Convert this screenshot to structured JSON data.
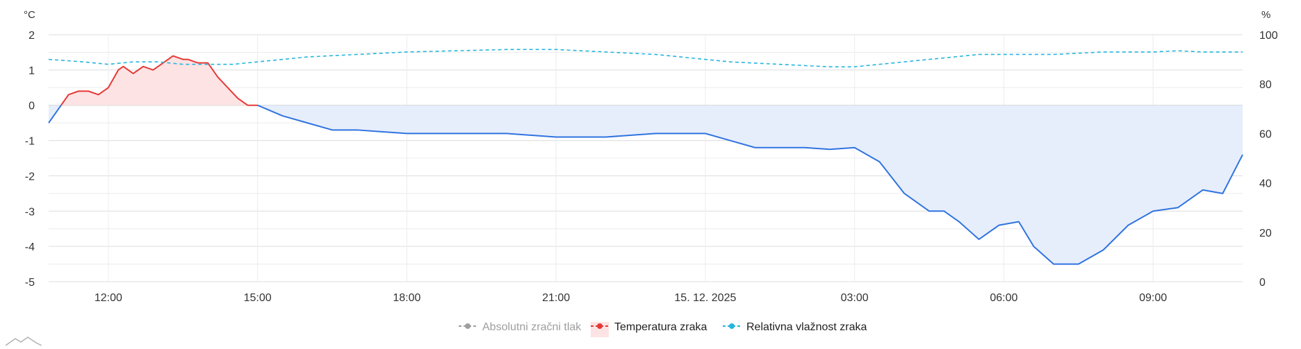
{
  "chart_data": {
    "type": "line",
    "y_left": {
      "unit": "°C",
      "range": [
        -5,
        2
      ],
      "ticks": [
        2,
        1,
        0,
        -1,
        -2,
        -3,
        -4,
        -5
      ]
    },
    "y_right": {
      "unit": "%",
      "range": [
        0,
        100
      ],
      "ticks": [
        100,
        80,
        60,
        40,
        20,
        0
      ]
    },
    "x_ticks": [
      "12:00",
      "15:00",
      "18:00",
      "21:00",
      "15. 12. 2025",
      "03:00",
      "06:00",
      "09:00"
    ],
    "x_tick_hours": [
      12,
      15,
      18,
      21,
      24,
      27,
      30,
      33
    ],
    "x_range_hours": [
      10.8,
      34.8
    ],
    "grid": true,
    "legend_position": "bottom",
    "series": [
      {
        "name": "Absolutni zračni tlak",
        "axis": "none",
        "visible": false,
        "color": "#9e9e9e",
        "points": []
      },
      {
        "name": "Temperatura zraka",
        "axis": "left",
        "visible": true,
        "color_above_zero": "#e53935",
        "color_below_zero": "#2f73e0",
        "fill_above_zero": "#fde3e4",
        "fill_below_zero": "#e6eefc",
        "x_hours": [
          10.8,
          11.0,
          11.2,
          11.4,
          11.6,
          11.8,
          12.0,
          12.2,
          12.3,
          12.5,
          12.7,
          12.9,
          13.0,
          13.3,
          13.5,
          13.6,
          13.8,
          14.0,
          14.2,
          14.4,
          14.6,
          14.8,
          15.0,
          15.5,
          16.0,
          16.5,
          17.0,
          17.5,
          18.0,
          19.0,
          20.0,
          21.0,
          22.0,
          23.0,
          24.0,
          24.5,
          25.0,
          25.5,
          26.0,
          26.5,
          27.0,
          27.5,
          28.0,
          28.5,
          28.8,
          29.1,
          29.5,
          29.9,
          30.3,
          30.6,
          31.0,
          31.5,
          32.0,
          32.5,
          33.0,
          33.5,
          34.0,
          34.4,
          34.8
        ],
        "values": [
          -0.5,
          -0.1,
          0.3,
          0.4,
          0.4,
          0.3,
          0.5,
          1.0,
          1.1,
          0.9,
          1.1,
          1.0,
          1.1,
          1.4,
          1.3,
          1.3,
          1.2,
          1.2,
          0.8,
          0.5,
          0.2,
          0.0,
          0.0,
          -0.3,
          -0.5,
          -0.7,
          -0.7,
          -0.75,
          -0.8,
          -0.8,
          -0.8,
          -0.9,
          -0.9,
          -0.8,
          -0.8,
          -1.0,
          -1.2,
          -1.2,
          -1.2,
          -1.25,
          -1.2,
          -1.6,
          -2.5,
          -3.0,
          -3.0,
          -3.3,
          -3.8,
          -3.4,
          -3.3,
          -4.0,
          -4.5,
          -4.5,
          -4.1,
          -3.4,
          -3.0,
          -2.9,
          -2.4,
          -2.5,
          -1.4
        ]
      },
      {
        "name": "Relativna vlažnost zraka",
        "axis": "right",
        "visible": true,
        "color": "#26b5dd",
        "x_hours": [
          10.8,
          11.5,
          12.0,
          12.5,
          13.0,
          13.5,
          14.0,
          14.5,
          15.0,
          16.0,
          17.0,
          18.0,
          19.0,
          20.0,
          21.0,
          22.0,
          23.0,
          24.0,
          24.5,
          25.0,
          25.5,
          26.0,
          26.5,
          27.0,
          27.5,
          28.0,
          28.5,
          29.0,
          29.5,
          30.0,
          30.5,
          31.0,
          31.5,
          32.0,
          32.5,
          33.0,
          33.5,
          34.0,
          34.8
        ],
        "values": [
          90,
          89,
          88,
          89,
          89,
          88,
          88,
          88,
          89,
          91,
          92,
          93,
          93.5,
          94,
          94,
          93,
          92,
          90,
          89,
          88.5,
          88,
          87.5,
          87,
          87,
          88,
          89,
          90,
          91,
          92,
          92,
          92,
          92,
          92.5,
          93,
          93,
          93,
          93.5,
          93,
          93
        ]
      }
    ]
  },
  "legend": [
    {
      "label": "Absolutni zračni tlak",
      "icon": "dashed-line-dot",
      "color": "#9e9e9e",
      "active": false
    },
    {
      "label": "Temperatura zraka",
      "icon": "dashed-line-dot-with-fill",
      "color": "#e53935",
      "active": true
    },
    {
      "label": "Relativna vlažnost zraka",
      "icon": "dashed-line-dot",
      "color": "#26b5dd",
      "active": true
    }
  ]
}
